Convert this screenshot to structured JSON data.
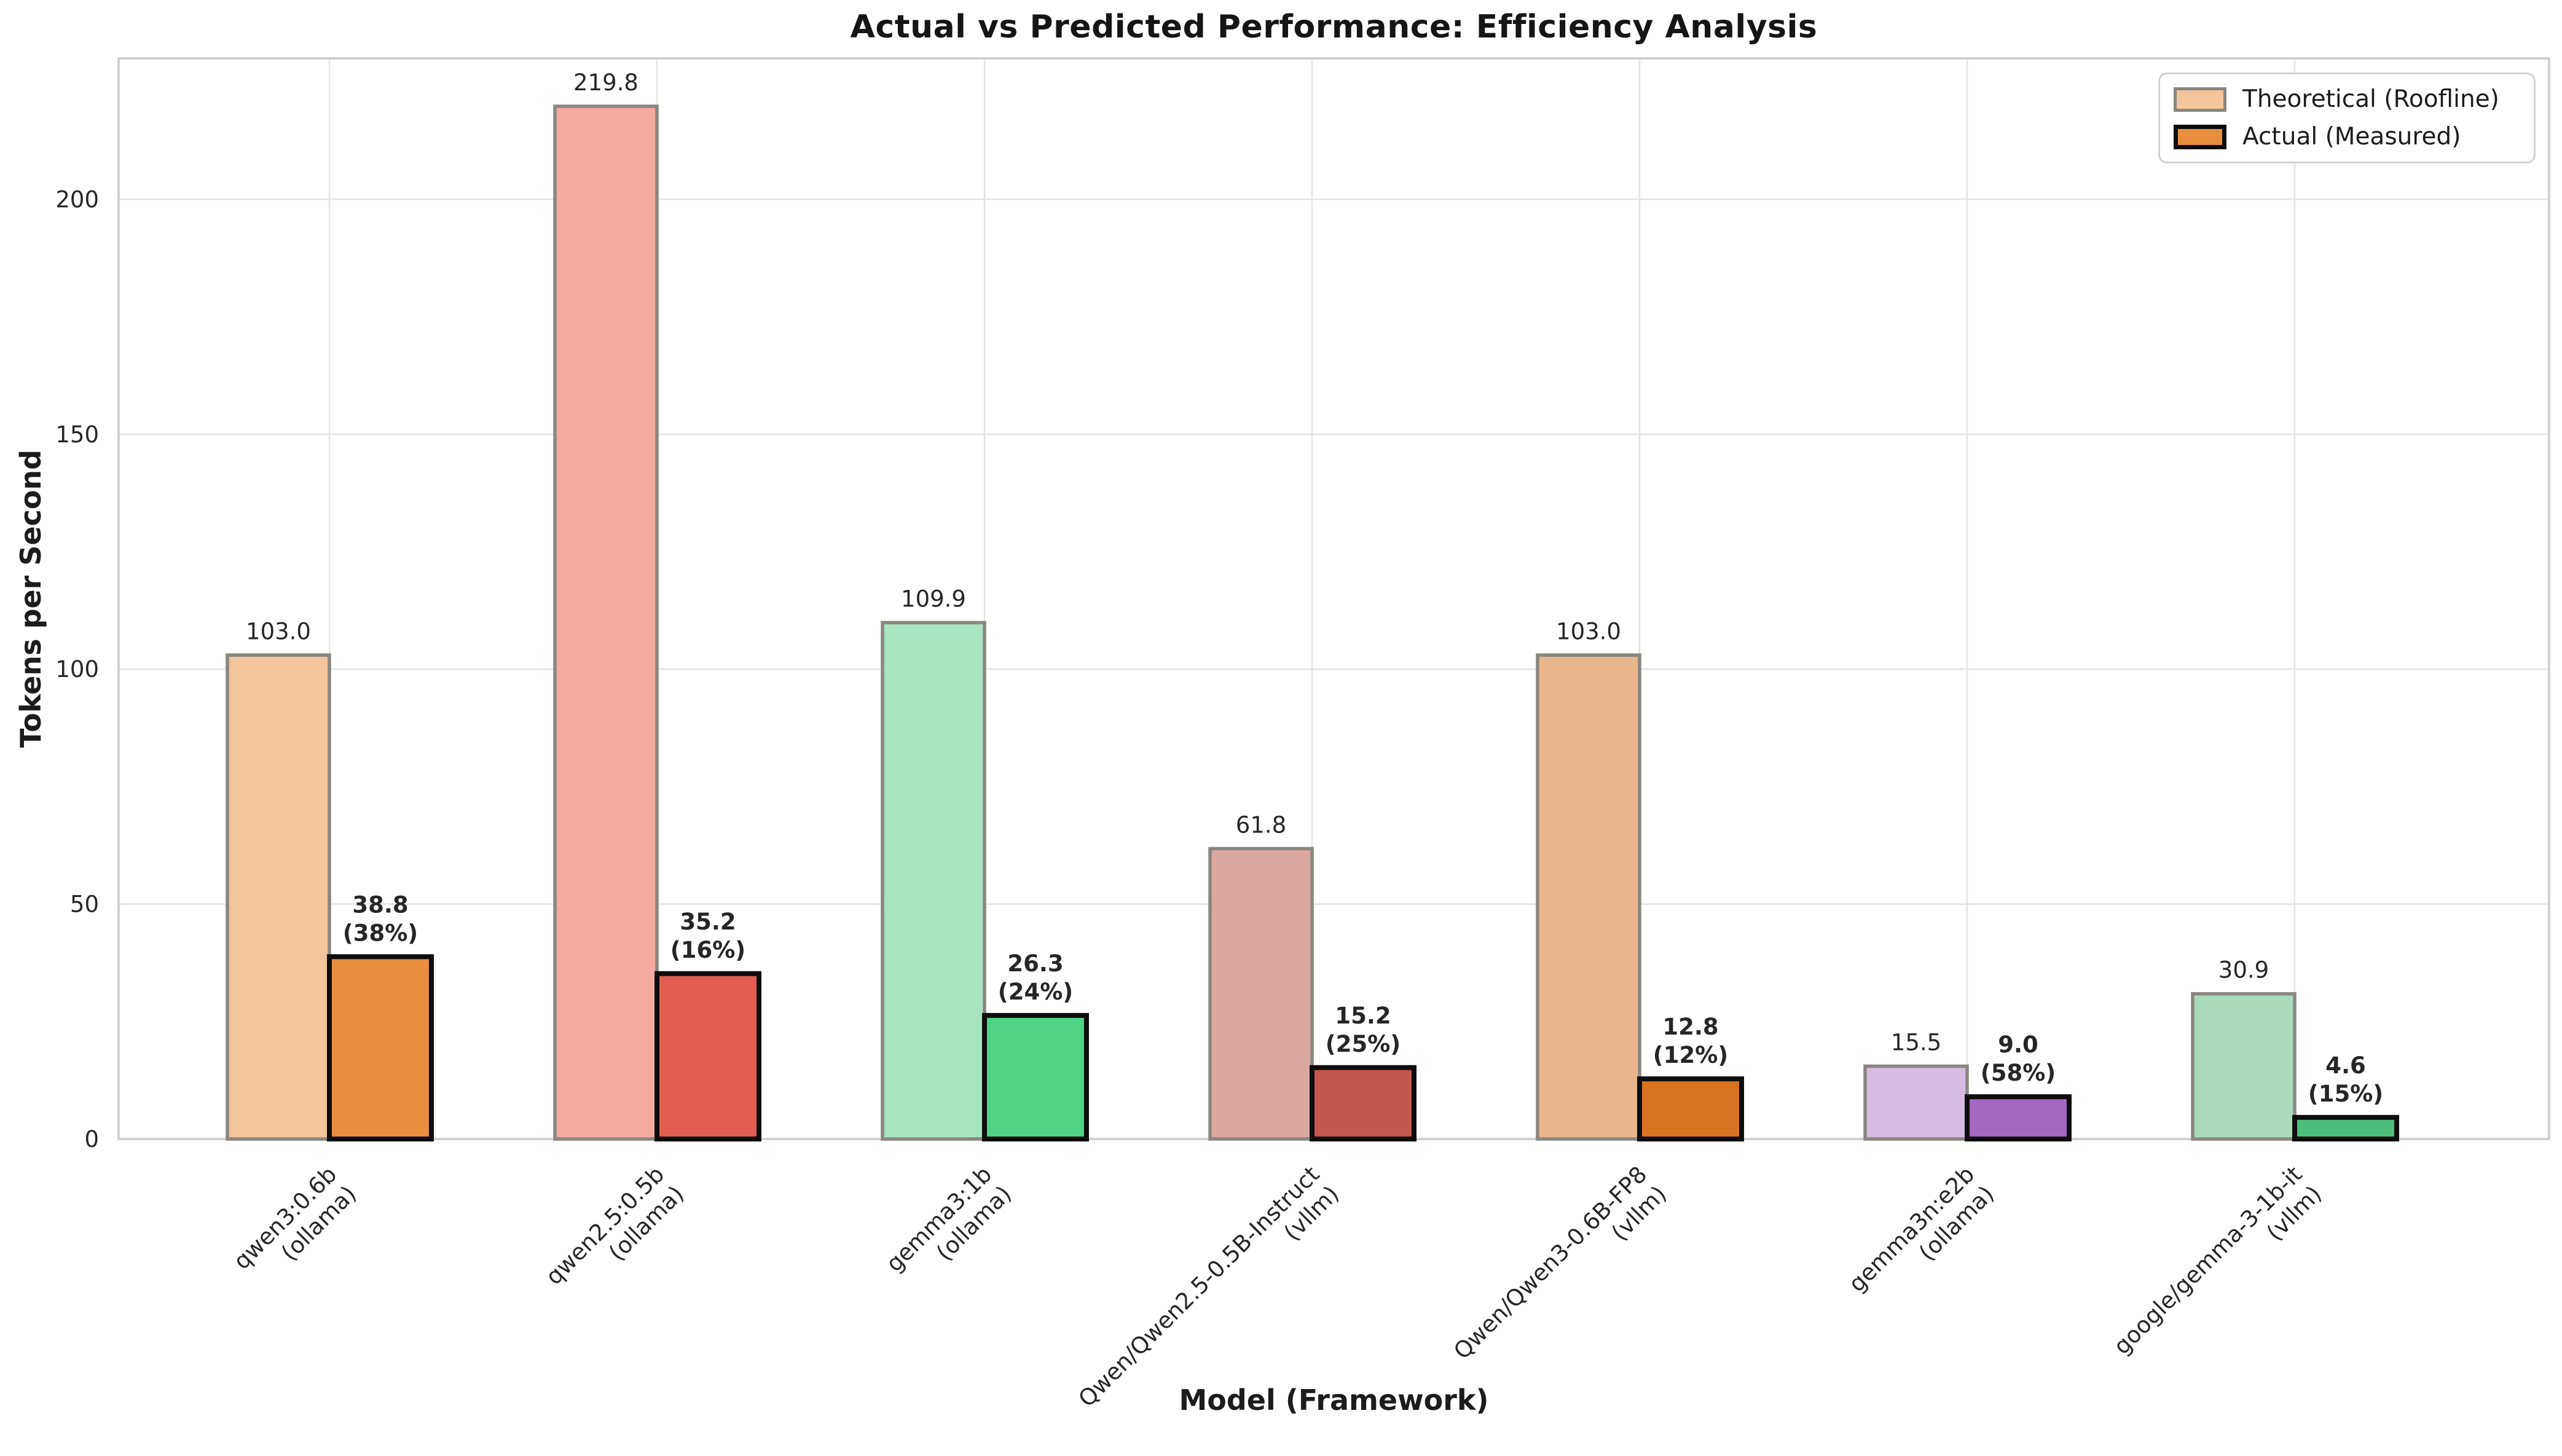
{
  "chart_data": {
    "type": "bar",
    "title": "Actual vs Predicted Performance: Efficiency Analysis",
    "xlabel": "Model (Framework)",
    "ylabel": "Tokens per Second",
    "ylim": [
      0,
      230
    ],
    "yticks": [
      0,
      50,
      100,
      150,
      200
    ],
    "ytick_labels": [
      "0",
      "50",
      "100",
      "150",
      "200"
    ],
    "grid": true,
    "legend_position": "upper right",
    "categories": [
      "qwen3:0.6b (ollama)",
      "qwen2.5:0.5b (ollama)",
      "gemma3:1b (ollama)",
      "Qwen/Qwen2.5-0.5B-Instruct (vllm)",
      "Qwen/Qwen3-0.6B-FP8 (vllm)",
      "gemma3n:e2b (ollama)",
      "google/gemma-3-1b-it (vllm)"
    ],
    "category_lines": [
      [
        "qwen3:0.6b",
        "(ollama)"
      ],
      [
        "qwen2.5:0.5b",
        "(ollama)"
      ],
      [
        "gemma3:1b",
        "(ollama)"
      ],
      [
        "Qwen/Qwen2.5-0.5B-Instruct",
        "(vllm)"
      ],
      [
        "Qwen/Qwen3-0.6B-FP8",
        "(vllm)"
      ],
      [
        "gemma3n:e2b",
        "(ollama)"
      ],
      [
        "google/gemma-3-1b-it",
        "(vllm)"
      ]
    ],
    "series": [
      {
        "name": "Theoretical (Roofline)",
        "values": [
          103.0,
          219.8,
          109.9,
          61.8,
          103.0,
          15.5,
          30.9
        ],
        "labels": [
          "103.0",
          "219.8",
          "109.9",
          "61.8",
          "103.0",
          "15.5",
          "30.9"
        ],
        "fills": [
          "#f4c49a",
          "#f5aaa0",
          "#a7e5c1",
          "#dba7a1",
          "#e9b68c",
          "#d7bce2",
          "#a9dabc"
        ],
        "edge": "#8a8680"
      },
      {
        "name": "Actual (Measured)",
        "values": [
          38.8,
          35.2,
          26.3,
          15.2,
          12.8,
          9.0,
          4.6
        ],
        "labels": [
          "38.8",
          "35.2",
          "26.3",
          "15.2",
          "12.8",
          "9.0",
          "4.6"
        ],
        "pct_labels": [
          "(38%)",
          "(16%)",
          "(24%)",
          "(25%)",
          "(12%)",
          "(58%)",
          "(15%)"
        ],
        "fills": [
          "#e78f3e",
          "#e25d50",
          "#4fd386",
          "#c5574d",
          "#d9731f",
          "#a468c1",
          "#4dbe7c"
        ],
        "edge": "#0d0d0d"
      }
    ],
    "legend": {
      "entries": [
        {
          "label": "Theoretical (Roofline)",
          "fill": "#f4c49a",
          "edge": "#8a8680"
        },
        {
          "label": "Actual (Measured)",
          "fill": "#e78f3e",
          "edge": "#0d0d0d"
        }
      ]
    },
    "colors": {
      "grid": "#e4e4e4",
      "spine": "#cbcbcb",
      "text": "#1c1c1c",
      "tick_text": "#262626"
    }
  }
}
